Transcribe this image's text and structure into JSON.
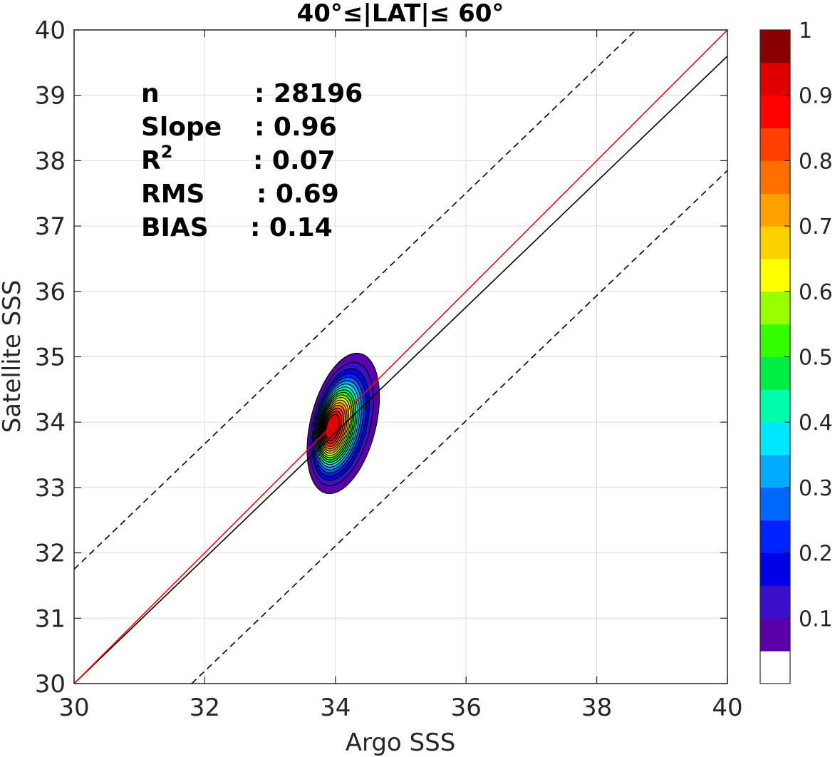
{
  "chart_data": {
    "type": "contour",
    "title": "40°≤|LAT|≤ 60°",
    "xlabel": "Argo SSS",
    "ylabel": "Satellite SSS",
    "xlim": [
      30,
      40
    ],
    "ylim": [
      30,
      40
    ],
    "xticks": [
      "30",
      "32",
      "34",
      "36",
      "38",
      "40"
    ],
    "yticks": [
      "30",
      "31",
      "32",
      "33",
      "34",
      "35",
      "36",
      "37",
      "38",
      "39",
      "40"
    ],
    "grid": true,
    "stats": [
      {
        "label": "n",
        "sep": ":",
        "value": "28196"
      },
      {
        "label": "Slope",
        "sep": ":",
        "value": "0.96"
      },
      {
        "label": "R",
        "sup": "2",
        "sep": ":",
        "value": "0.07"
      },
      {
        "label": "RMS",
        "sep": ":",
        "value": "0.69"
      },
      {
        "label": "BIAS",
        "sep": ":",
        "value": "0.14"
      }
    ],
    "lines": {
      "one_to_one": {
        "color": "#ff0000",
        "points": [
          [
            30,
            30
          ],
          [
            40,
            40
          ]
        ]
      },
      "fit": {
        "color": "#000000",
        "points": [
          [
            30,
            30
          ],
          [
            40,
            39.6
          ]
        ]
      },
      "upper_bound": {
        "color": "#000000",
        "style": "dashed",
        "points": [
          [
            30,
            31.75
          ],
          [
            38.6,
            40
          ]
        ]
      },
      "lower_bound": {
        "color": "#000000",
        "style": "dashed",
        "points": [
          [
            31.8,
            30
          ],
          [
            40,
            37.85
          ]
        ]
      }
    },
    "density_peak": {
      "x": 33.92,
      "y": 33.9
    },
    "contour_levels": [
      0.05,
      0.1,
      0.15,
      0.2,
      0.25,
      0.3,
      0.35,
      0.4,
      0.45,
      0.5,
      0.55,
      0.6,
      0.65,
      0.7,
      0.75,
      0.8,
      0.85,
      0.9,
      0.95
    ],
    "colorbar": {
      "range": [
        0,
        1
      ],
      "ticks": [
        "0.1",
        "0.2",
        "0.3",
        "0.4",
        "0.5",
        "0.6",
        "0.7",
        "0.8",
        "0.9",
        "1"
      ],
      "colors": [
        "#ffffff",
        "#5a00aa",
        "#3a10cc",
        "#0000e6",
        "#0022ff",
        "#0066ff",
        "#00aaff",
        "#00e8ff",
        "#00ffaa",
        "#00ee44",
        "#33ff00",
        "#99ff00",
        "#ffff00",
        "#ffd000",
        "#ffa000",
        "#ff7000",
        "#ff4000",
        "#ff0000",
        "#dd0000",
        "#880000"
      ]
    }
  }
}
